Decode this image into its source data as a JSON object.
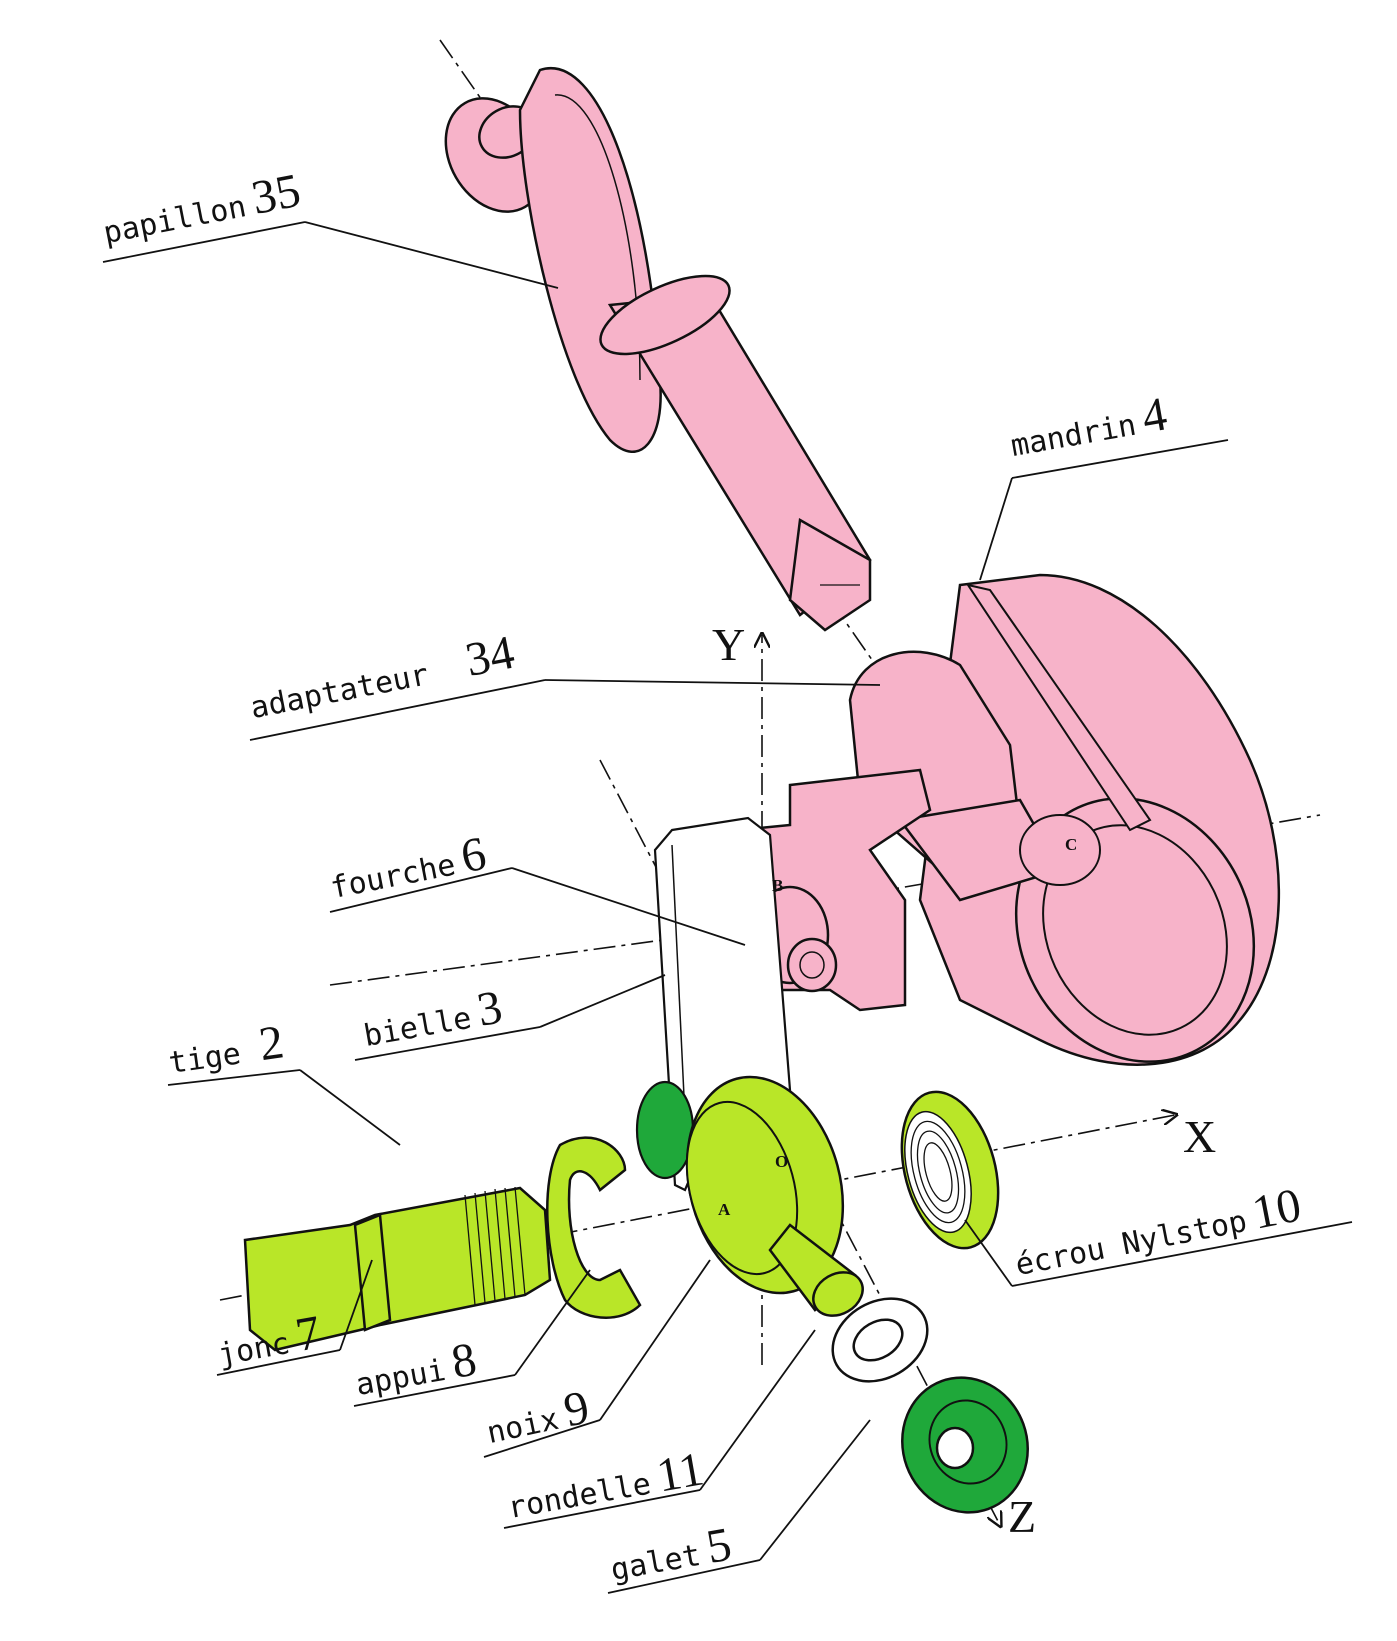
{
  "colors": {
    "pink": "#f7b3c9",
    "lime": "#b9e628",
    "green": "#1fa83a",
    "line": "#111111",
    "white": "#ffffff"
  },
  "labels": {
    "papillon": {
      "word": "papillon",
      "num": "35"
    },
    "mandrin": {
      "word": "mandrin",
      "num": "4"
    },
    "adaptateur": {
      "word": "adaptateur",
      "num": "34"
    },
    "fourche": {
      "word": "fourche",
      "num": "6"
    },
    "bielle": {
      "word": "bielle",
      "num": "3"
    },
    "tige": {
      "word": "tige",
      "num": "2"
    },
    "jonc": {
      "word": "jonc",
      "num": "7"
    },
    "appui": {
      "word": "appui",
      "num": "8"
    },
    "noix": {
      "word": "noix",
      "num": "9"
    },
    "rondelle": {
      "word": "rondelle",
      "num": "11"
    },
    "galet": {
      "word": "galet",
      "num": "5"
    },
    "ecrou": {
      "word": "écrou Nylstop",
      "num": "10"
    }
  },
  "axes": {
    "x": "X",
    "y": "Y",
    "z": "Z"
  },
  "points": {
    "a": "A",
    "b": "B",
    "c": "C",
    "o": "O"
  }
}
